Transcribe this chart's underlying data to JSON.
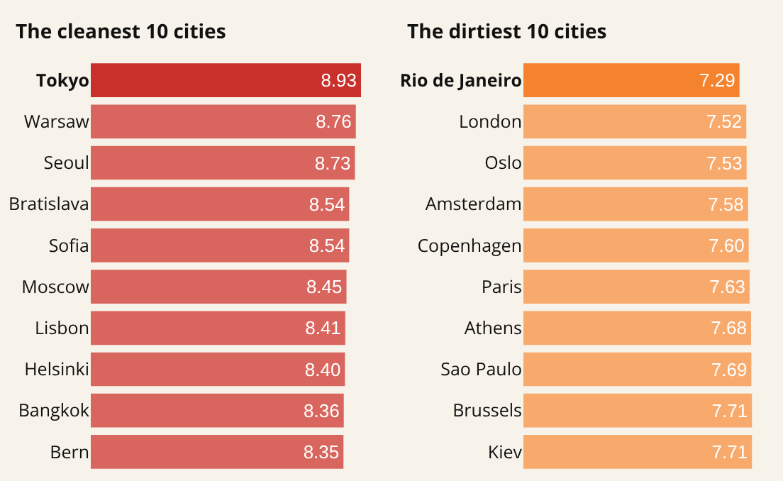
{
  "chart_data": [
    {
      "type": "bar",
      "orientation": "horizontal",
      "title": "The cleanest 10 cities",
      "categories": [
        "Tokyo",
        "Warsaw",
        "Seoul",
        "Bratislava",
        "Sofia",
        "Moscow",
        "Lisbon",
        "Helsinki",
        "Bangkok",
        "Bern"
      ],
      "values": [
        8.93,
        8.76,
        8.73,
        8.54,
        8.54,
        8.45,
        8.41,
        8.4,
        8.36,
        8.35
      ],
      "colors": [
        "#c9302c",
        "#d9665e",
        "#d9665e",
        "#d9665e",
        "#d9665e",
        "#d9665e",
        "#d9665e",
        "#d9665e",
        "#d9665e",
        "#d9665e"
      ],
      "value_labels": [
        "8.93",
        "8.76",
        "8.73",
        "8.54",
        "8.54",
        "8.45",
        "8.41",
        "8.40",
        "8.36",
        "8.35"
      ],
      "xlim": [
        0,
        9
      ],
      "tick_labels": "y"
    },
    {
      "type": "bar",
      "orientation": "horizontal",
      "title": "The dirtiest 10 cities",
      "categories": [
        "Rio de Janeiro",
        "London",
        "Oslo",
        "Amsterdam",
        "Copenhagen",
        "Paris",
        "Athens",
        "Sao Paulo",
        "Brussels",
        "Kiev"
      ],
      "values": [
        7.29,
        7.52,
        7.53,
        7.58,
        7.6,
        7.63,
        7.68,
        7.69,
        7.71,
        7.71
      ],
      "colors": [
        "#f5822c",
        "#f8a96c",
        "#f8a96c",
        "#f8a96c",
        "#f8a96c",
        "#f8a96c",
        "#f8a96c",
        "#f8a96c",
        "#f8a96c",
        "#f8a96c"
      ],
      "value_labels": [
        "7.29",
        "7.52",
        "7.53",
        "7.58",
        "7.60",
        "7.63",
        "7.68",
        "7.69",
        "7.71",
        "7.71"
      ],
      "xlim": [
        0,
        7.8
      ],
      "tick_labels": "y"
    }
  ]
}
